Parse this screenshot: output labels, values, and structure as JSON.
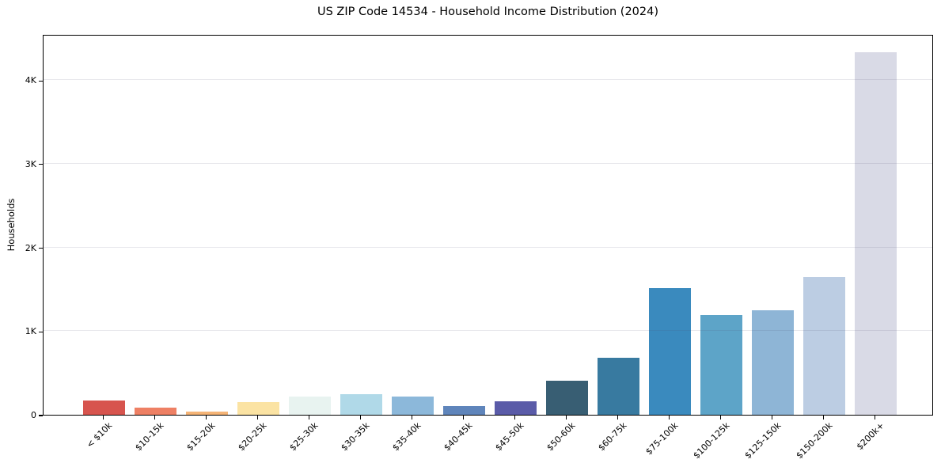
{
  "chart_data": {
    "type": "bar",
    "title": "US ZIP Code 14534 - Household Income Distribution (2024)",
    "xlabel": "",
    "ylabel": "Households",
    "categories": [
      "< $10k",
      "$10-15k",
      "$15-20k",
      "$20-25k",
      "$25-30k",
      "$30-35k",
      "$35-40k",
      "$40-45k",
      "$45-50k",
      "$50-60k",
      "$60-75k",
      "$75-100k",
      "$100-125k",
      "$125-150k",
      "$150-200k",
      "$200k+"
    ],
    "values": [
      170,
      85,
      40,
      150,
      215,
      250,
      215,
      105,
      160,
      410,
      680,
      1510,
      1190,
      1250,
      1650,
      4330
    ],
    "bar_colors": [
      "#d7544e",
      "#ee8064",
      "#f5b476",
      "#fbe3a3",
      "#e8f3f0",
      "#b0d9e8",
      "#8cb8da",
      "#5f85bb",
      "#5a5ba8",
      "#385e73",
      "#387aa0",
      "#3a8abe",
      "#5da4c8",
      "#8eb5d6",
      "#bccde3",
      "#d9dae6"
    ],
    "ylim": [
      0,
      4550
    ],
    "yticks": [
      {
        "value": 0,
        "label": "0"
      },
      {
        "value": 1000,
        "label": "1K"
      },
      {
        "value": 2000,
        "label": "2K"
      },
      {
        "value": 3000,
        "label": "3K"
      },
      {
        "value": 4000,
        "label": "4K"
      }
    ],
    "grid": "horizontal",
    "grid_color": "#e7e7ea",
    "spine_color": "#000000",
    "text_color": "#000000",
    "legend": false
  }
}
